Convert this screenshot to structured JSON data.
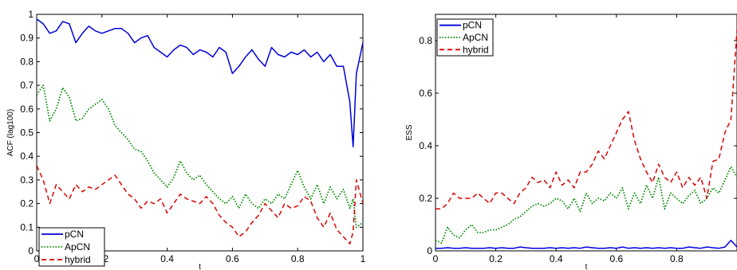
{
  "chart_data": [
    {
      "type": "line",
      "xlabel": "t",
      "ylabel": "ACF (lag100)",
      "xlim": [
        0,
        1
      ],
      "ylim": [
        0,
        1
      ],
      "xticks": [
        "0",
        "0.2",
        "0.4",
        "0.6",
        "0.8",
        "1"
      ],
      "yticks": [
        "0",
        "0.1",
        "0.2",
        "0.3",
        "0.4",
        "0.5",
        "0.6",
        "0.7",
        "0.8",
        "0.9",
        "1"
      ],
      "legend_position": "bottom-left",
      "x": [
        0,
        0.02,
        0.04,
        0.06,
        0.08,
        0.1,
        0.12,
        0.14,
        0.16,
        0.18,
        0.2,
        0.22,
        0.24,
        0.26,
        0.28,
        0.3,
        0.32,
        0.34,
        0.36,
        0.38,
        0.4,
        0.42,
        0.44,
        0.46,
        0.48,
        0.5,
        0.52,
        0.54,
        0.56,
        0.58,
        0.6,
        0.62,
        0.64,
        0.66,
        0.68,
        0.7,
        0.72,
        0.74,
        0.76,
        0.78,
        0.8,
        0.82,
        0.84,
        0.86,
        0.88,
        0.9,
        0.92,
        0.94,
        0.96,
        0.97,
        0.98,
        1.0
      ],
      "series": [
        {
          "name": "pCN",
          "color": "#0000dd",
          "style": "solid",
          "values": [
            0.98,
            0.96,
            0.92,
            0.93,
            0.97,
            0.96,
            0.88,
            0.92,
            0.95,
            0.93,
            0.92,
            0.93,
            0.94,
            0.94,
            0.92,
            0.88,
            0.9,
            0.91,
            0.86,
            0.84,
            0.82,
            0.85,
            0.87,
            0.86,
            0.83,
            0.85,
            0.84,
            0.82,
            0.86,
            0.84,
            0.75,
            0.78,
            0.82,
            0.85,
            0.81,
            0.78,
            0.86,
            0.83,
            0.82,
            0.84,
            0.83,
            0.85,
            0.82,
            0.84,
            0.8,
            0.83,
            0.78,
            0.78,
            0.63,
            0.44,
            0.75,
            0.88
          ]
        },
        {
          "name": "ApCN",
          "color": "#008800",
          "style": "dotted",
          "values": [
            0.66,
            0.7,
            0.55,
            0.6,
            0.69,
            0.65,
            0.55,
            0.56,
            0.6,
            0.62,
            0.64,
            0.6,
            0.53,
            0.5,
            0.47,
            0.43,
            0.42,
            0.38,
            0.33,
            0.3,
            0.27,
            0.31,
            0.38,
            0.33,
            0.3,
            0.32,
            0.28,
            0.25,
            0.22,
            0.2,
            0.23,
            0.18,
            0.24,
            0.2,
            0.18,
            0.22,
            0.2,
            0.24,
            0.22,
            0.28,
            0.34,
            0.27,
            0.22,
            0.28,
            0.2,
            0.27,
            0.22,
            0.26,
            0.18,
            0.22,
            0.1,
            0.12
          ]
        },
        {
          "name": "hybrid",
          "color": "#dd0000",
          "style": "dashed",
          "values": [
            0.36,
            0.3,
            0.2,
            0.28,
            0.25,
            0.22,
            0.28,
            0.25,
            0.27,
            0.26,
            0.28,
            0.3,
            0.32,
            0.28,
            0.24,
            0.22,
            0.18,
            0.21,
            0.2,
            0.22,
            0.16,
            0.2,
            0.24,
            0.22,
            0.21,
            0.2,
            0.23,
            0.2,
            0.15,
            0.12,
            0.1,
            0.06,
            0.08,
            0.12,
            0.15,
            0.2,
            0.17,
            0.14,
            0.2,
            0.18,
            0.19,
            0.23,
            0.21,
            0.14,
            0.1,
            0.16,
            0.09,
            0.06,
            0.03,
            0.08,
            0.3,
            0.2
          ]
        }
      ]
    },
    {
      "type": "line",
      "xlabel": "t",
      "ylabel": "ESS",
      "xlim": [
        0,
        1
      ],
      "ylim": [
        0,
        0.9
      ],
      "xticks": [
        "0",
        "0.2",
        "0.4",
        "0.6",
        "0.8"
      ],
      "yticks": [
        "0",
        "0.2",
        "0.4",
        "0.6",
        "0.8"
      ],
      "legend_position": "top-left",
      "x": [
        0,
        0.02,
        0.04,
        0.06,
        0.08,
        0.1,
        0.12,
        0.14,
        0.16,
        0.18,
        0.2,
        0.22,
        0.24,
        0.26,
        0.28,
        0.3,
        0.32,
        0.34,
        0.36,
        0.38,
        0.4,
        0.42,
        0.44,
        0.46,
        0.48,
        0.5,
        0.52,
        0.54,
        0.56,
        0.58,
        0.6,
        0.62,
        0.64,
        0.66,
        0.68,
        0.7,
        0.72,
        0.74,
        0.76,
        0.78,
        0.8,
        0.82,
        0.84,
        0.86,
        0.88,
        0.9,
        0.92,
        0.94,
        0.96,
        0.98,
        1.0
      ],
      "series": [
        {
          "name": "pCN",
          "color": "#0000dd",
          "style": "solid",
          "values": [
            0.01,
            0.01,
            0.012,
            0.01,
            0.01,
            0.012,
            0.01,
            0.01,
            0.01,
            0.012,
            0.01,
            0.012,
            0.01,
            0.01,
            0.015,
            0.012,
            0.01,
            0.01,
            0.01,
            0.012,
            0.01,
            0.012,
            0.01,
            0.012,
            0.01,
            0.015,
            0.012,
            0.01,
            0.01,
            0.012,
            0.01,
            0.015,
            0.01,
            0.012,
            0.01,
            0.012,
            0.01,
            0.012,
            0.01,
            0.012,
            0.01,
            0.01,
            0.015,
            0.012,
            0.01,
            0.015,
            0.012,
            0.01,
            0.015,
            0.04,
            0.015
          ]
        },
        {
          "name": "ApCN",
          "color": "#008800",
          "style": "dotted",
          "values": [
            0.04,
            0.03,
            0.09,
            0.06,
            0.05,
            0.08,
            0.1,
            0.07,
            0.07,
            0.08,
            0.08,
            0.09,
            0.1,
            0.12,
            0.13,
            0.15,
            0.17,
            0.18,
            0.17,
            0.18,
            0.2,
            0.19,
            0.16,
            0.2,
            0.15,
            0.22,
            0.18,
            0.2,
            0.19,
            0.22,
            0.2,
            0.24,
            0.16,
            0.22,
            0.18,
            0.25,
            0.2,
            0.28,
            0.16,
            0.22,
            0.2,
            0.18,
            0.21,
            0.23,
            0.18,
            0.2,
            0.24,
            0.22,
            0.27,
            0.32,
            0.28
          ]
        },
        {
          "name": "hybrid",
          "color": "#dd0000",
          "style": "dashed",
          "values": [
            0.16,
            0.16,
            0.18,
            0.22,
            0.2,
            0.2,
            0.2,
            0.22,
            0.2,
            0.18,
            0.22,
            0.22,
            0.2,
            0.18,
            0.22,
            0.24,
            0.28,
            0.26,
            0.27,
            0.24,
            0.3,
            0.25,
            0.27,
            0.24,
            0.3,
            0.3,
            0.33,
            0.38,
            0.35,
            0.4,
            0.45,
            0.5,
            0.53,
            0.42,
            0.35,
            0.3,
            0.26,
            0.33,
            0.28,
            0.26,
            0.3,
            0.24,
            0.28,
            0.25,
            0.28,
            0.2,
            0.34,
            0.35,
            0.45,
            0.5,
            0.84
          ]
        }
      ]
    }
  ]
}
